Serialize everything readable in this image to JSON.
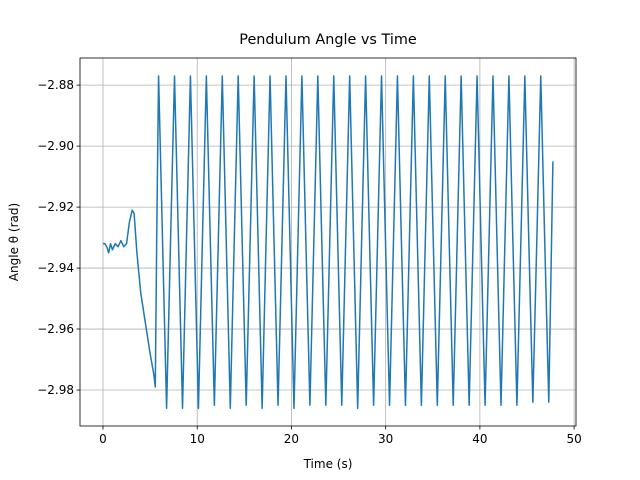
{
  "chart_data": {
    "type": "line",
    "title": "Pendulum Angle vs Time",
    "xlabel": "Time (s)",
    "ylabel": "Angle θ (rad)",
    "x": [
      0,
      0.2,
      0.4,
      0.6,
      0.8,
      1.0,
      1.3,
      1.6,
      1.9,
      2.2,
      2.5,
      2.8,
      3.1,
      3.3,
      3.6,
      4.0,
      4.5,
      5.0,
      5.4,
      5.55,
      5.7,
      5.9,
      6.32,
      6.75,
      7.17,
      7.59,
      8.01,
      8.44,
      8.86,
      9.28,
      9.7,
      10.13,
      10.55,
      10.97,
      11.39,
      11.82,
      12.24,
      12.66,
      13.08,
      13.51,
      13.93,
      14.35,
      14.77,
      15.2,
      15.62,
      16.04,
      16.46,
      16.89,
      17.31,
      17.73,
      18.15,
      18.58,
      19.0,
      19.42,
      19.84,
      20.27,
      20.69,
      21.11,
      21.53,
      21.96,
      22.38,
      22.8,
      23.22,
      23.65,
      24.07,
      24.49,
      24.91,
      25.34,
      25.76,
      26.18,
      26.6,
      27.03,
      27.45,
      27.87,
      28.29,
      28.72,
      29.14,
      29.56,
      29.98,
      30.41,
      30.83,
      31.25,
      31.67,
      32.1,
      32.52,
      32.94,
      33.36,
      33.79,
      34.21,
      34.63,
      35.05,
      35.48,
      35.9,
      36.32,
      36.74,
      37.17,
      37.59,
      38.01,
      38.43,
      38.86,
      39.28,
      39.7,
      40.12,
      40.55,
      40.97,
      41.39,
      41.81,
      42.24,
      42.66,
      43.08,
      43.5,
      43.93,
      44.35,
      44.77,
      45.19,
      45.62,
      46.04,
      46.46,
      46.88,
      47.31,
      47.75
    ],
    "series": [
      {
        "color": "#1f77b4",
        "values": [
          -2.932,
          -2.932,
          -2.933,
          -2.935,
          -2.932,
          -2.934,
          -2.932,
          -2.933,
          -2.931,
          -2.933,
          -2.932,
          -2.925,
          -2.921,
          -2.922,
          -2.935,
          -2.948,
          -2.958,
          -2.968,
          -2.975,
          -2.979,
          -2.93,
          -2.877,
          -2.931,
          -2.986,
          -2.931,
          -2.877,
          -2.931,
          -2.986,
          -2.931,
          -2.877,
          -2.931,
          -2.986,
          -2.931,
          -2.877,
          -2.931,
          -2.985,
          -2.931,
          -2.877,
          -2.931,
          -2.986,
          -2.931,
          -2.877,
          -2.931,
          -2.985,
          -2.931,
          -2.877,
          -2.931,
          -2.986,
          -2.931,
          -2.877,
          -2.931,
          -2.985,
          -2.931,
          -2.877,
          -2.931,
          -2.986,
          -2.931,
          -2.877,
          -2.931,
          -2.985,
          -2.931,
          -2.877,
          -2.931,
          -2.985,
          -2.931,
          -2.877,
          -2.931,
          -2.985,
          -2.931,
          -2.877,
          -2.931,
          -2.986,
          -2.931,
          -2.877,
          -2.931,
          -2.985,
          -2.931,
          -2.877,
          -2.931,
          -2.985,
          -2.931,
          -2.877,
          -2.931,
          -2.985,
          -2.931,
          -2.877,
          -2.931,
          -2.985,
          -2.931,
          -2.877,
          -2.931,
          -2.985,
          -2.931,
          -2.877,
          -2.931,
          -2.985,
          -2.931,
          -2.877,
          -2.931,
          -2.985,
          -2.931,
          -2.877,
          -2.931,
          -2.985,
          -2.931,
          -2.877,
          -2.931,
          -2.985,
          -2.931,
          -2.877,
          -2.931,
          -2.985,
          -2.931,
          -2.877,
          -2.931,
          -2.984,
          -2.931,
          -2.877,
          -2.931,
          -2.984,
          -2.905
        ]
      }
    ],
    "xlim": [
      -2.44,
      50.2
    ],
    "ylim": [
      -2.9918,
      -2.8711
    ],
    "xticks": [
      0,
      10,
      20,
      30,
      40,
      50
    ],
    "yticks": [
      {
        "value": -2.98,
        "label": "−2.98"
      },
      {
        "value": -2.96,
        "label": "−2.96"
      },
      {
        "value": -2.94,
        "label": "−2.94"
      },
      {
        "value": -2.92,
        "label": "−2.92"
      },
      {
        "value": -2.9,
        "label": "−2.90"
      },
      {
        "value": -2.88,
        "label": "−2.88"
      }
    ],
    "grid": true
  }
}
